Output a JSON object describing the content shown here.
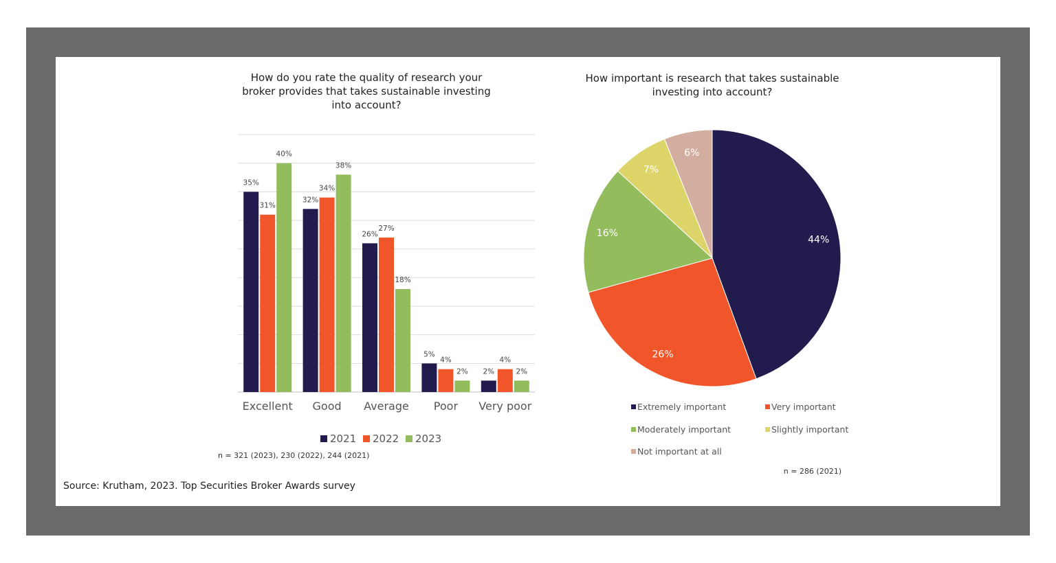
{
  "chart_data": [
    {
      "type": "bar",
      "title_lines": [
        "How do you rate the quality of research your",
        "broker provides that takes sustainable investing",
        "into account?"
      ],
      "categories": [
        "Excellent",
        "Good",
        "Average",
        "Poor",
        "Very poor"
      ],
      "series": [
        {
          "name": "2021",
          "color": "#221c4e",
          "values": [
            35,
            32,
            26,
            5,
            2
          ]
        },
        {
          "name": "2022",
          "color": "#f0562a",
          "values": [
            31,
            34,
            27,
            4,
            4
          ]
        },
        {
          "name": "2023",
          "color": "#93bc5d",
          "values": [
            40,
            38,
            18,
            2,
            2
          ]
        }
      ],
      "value_suffix": "%",
      "grid": true,
      "legend": "bottom",
      "note": "n = 321 (2023), 230 (2022), 244 (2021)"
    },
    {
      "type": "pie",
      "title_lines": [
        "How important is research that takes sustainable",
        "investing into account?"
      ],
      "slices": [
        {
          "label": "Extremely important",
          "value": 44,
          "color": "#221c4e"
        },
        {
          "label": "Very important",
          "value": 26,
          "color": "#f0562a"
        },
        {
          "label": "Moderately important",
          "value": 16,
          "color": "#93bc5d"
        },
        {
          "label": "Slightly important",
          "value": 7,
          "color": "#ddd46a"
        },
        {
          "label": "Not important at all",
          "value": 6,
          "color": "#d3aea0"
        }
      ],
      "value_suffix": "%",
      "legend": "bottom",
      "note": "n = 286 (2021)"
    }
  ],
  "source": "Source: Krutham, 2023. Top Securities Broker Awards survey"
}
